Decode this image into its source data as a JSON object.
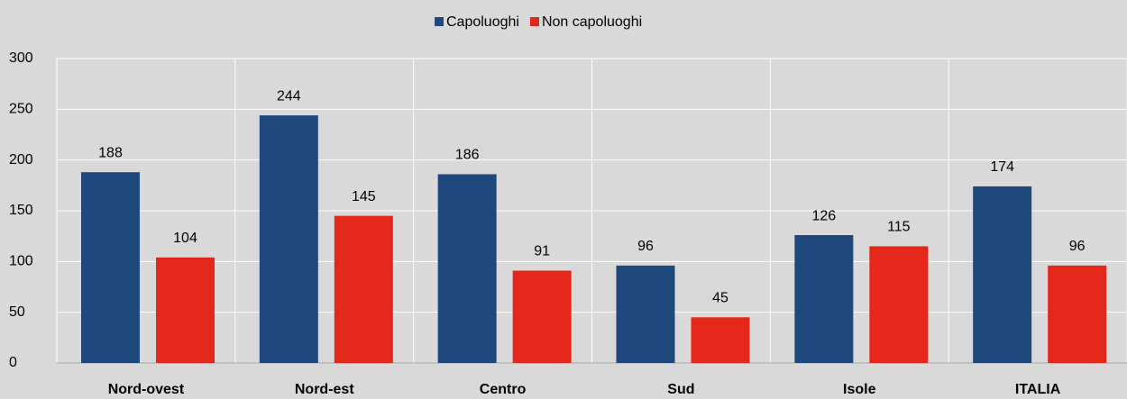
{
  "chart_data": {
    "type": "bar",
    "categories": [
      "Nord-ovest",
      "Nord-est",
      "Centro",
      "Sud",
      "Isole",
      "ITALIA"
    ],
    "series": [
      {
        "name": "Capoluoghi",
        "color": "#1f497d",
        "values": [
          188,
          244,
          186,
          96,
          126,
          174
        ]
      },
      {
        "name": "Non capoluoghi",
        "color": "#e3281b",
        "values": [
          104,
          145,
          91,
          45,
          115,
          96
        ]
      }
    ],
    "ylim": [
      0,
      300
    ],
    "yticks": [
      0,
      50,
      100,
      150,
      200,
      250,
      300
    ],
    "grid": true,
    "legend": "top"
  }
}
